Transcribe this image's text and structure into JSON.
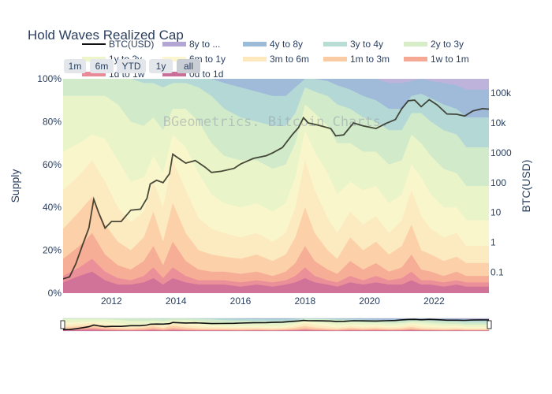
{
  "chart_data": {
    "type": "area",
    "title": "Hold Waves Realized Cap",
    "watermark": "BGeometrics. Bitcoin Charts.",
    "xlabel": "",
    "ylabel": "Supply",
    "y2label": "BTC(USD)",
    "x_ticks": [
      "2012",
      "2014",
      "2016",
      "2018",
      "2020",
      "2022"
    ],
    "y_ticks": [
      "0%",
      "20%",
      "40%",
      "60%",
      "80%",
      "100%"
    ],
    "y2_ticks": [
      "0.1",
      "1",
      "10",
      "100",
      "1000",
      "10k",
      "100k"
    ],
    "y2_scale": "log",
    "xlim": [
      2010.5,
      2023.7
    ],
    "ylim": [
      0,
      100
    ],
    "grid": false,
    "legend_position": "top",
    "legend": [
      {
        "name": "BTC(USD)",
        "color": "#111111",
        "kind": "line"
      },
      {
        "name": "8y to ...",
        "color": "#b3a6d4",
        "kind": "area"
      },
      {
        "name": "4y to 8y",
        "color": "#9bbbd8",
        "kind": "area"
      },
      {
        "name": "3y to 4y",
        "color": "#b7ddd4",
        "kind": "area"
      },
      {
        "name": "2y to 3y",
        "color": "#d6edc8",
        "kind": "area"
      },
      {
        "name": "1y to 2y",
        "color": "#eef6c9",
        "kind": "area"
      },
      {
        "name": "6m to 1y",
        "color": "#fbf6cd",
        "kind": "area"
      },
      {
        "name": "3m to 6m",
        "color": "#fde8bd",
        "kind": "area"
      },
      {
        "name": "1m to 3m",
        "color": "#fbcba3",
        "kind": "area"
      },
      {
        "name": "1w to 1m",
        "color": "#f5a894",
        "kind": "area"
      },
      {
        "name": "1d to 1w",
        "color": "#e98a98",
        "kind": "area"
      },
      {
        "name": "0d to 1d",
        "color": "#cc6f98",
        "kind": "area"
      }
    ],
    "range_buttons": [
      {
        "label": "1m",
        "active": false
      },
      {
        "label": "6m",
        "active": false
      },
      {
        "label": "YTD",
        "active": false
      },
      {
        "label": "1y",
        "active": false
      },
      {
        "label": "all",
        "active": true
      }
    ],
    "x": [
      2010.5,
      2011.0,
      2011.4,
      2011.8,
      2012.2,
      2012.6,
      2013.0,
      2013.3,
      2013.6,
      2013.9,
      2014.3,
      2014.7,
      2015.1,
      2015.5,
      2016.0,
      2016.5,
      2017.0,
      2017.4,
      2017.7,
      2018.0,
      2018.3,
      2018.7,
      2019.0,
      2019.4,
      2019.8,
      2020.2,
      2020.6,
      2021.0,
      2021.3,
      2021.6,
      2021.9,
      2022.3,
      2022.7,
      2023.0,
      2023.4,
      2023.7
    ],
    "series": [
      {
        "name": "0d to 1d",
        "values": [
          5,
          8,
          10,
          6,
          4,
          4,
          5,
          7,
          4,
          7,
          5,
          4,
          4,
          4,
          3,
          4,
          3,
          4,
          5,
          7,
          5,
          4,
          3,
          5,
          4,
          5,
          4,
          4,
          6,
          4,
          4,
          3,
          4,
          3,
          3,
          3
        ]
      },
      {
        "name": "1d to 1w",
        "values": [
          8,
          12,
          16,
          10,
          7,
          6,
          8,
          12,
          7,
          12,
          8,
          6,
          6,
          6,
          5,
          6,
          5,
          6,
          8,
          12,
          8,
          6,
          5,
          8,
          6,
          8,
          6,
          7,
          10,
          6,
          6,
          5,
          6,
          5,
          5,
          5
        ]
      },
      {
        "name": "1w to 1m",
        "values": [
          16,
          22,
          28,
          18,
          13,
          11,
          15,
          22,
          13,
          24,
          15,
          11,
          10,
          10,
          9,
          10,
          8,
          10,
          14,
          22,
          15,
          11,
          9,
          15,
          11,
          14,
          10,
          12,
          18,
          11,
          10,
          8,
          10,
          8,
          8,
          8
        ]
      },
      {
        "name": "1m to 3m",
        "values": [
          30,
          38,
          45,
          32,
          24,
          20,
          26,
          38,
          24,
          42,
          28,
          20,
          18,
          17,
          16,
          18,
          15,
          18,
          26,
          40,
          28,
          20,
          16,
          26,
          20,
          24,
          18,
          22,
          32,
          20,
          18,
          15,
          17,
          14,
          14,
          14
        ]
      },
      {
        "name": "3m to 6m",
        "values": [
          48,
          55,
          62,
          52,
          40,
          33,
          38,
          52,
          40,
          62,
          48,
          35,
          30,
          28,
          26,
          28,
          24,
          28,
          40,
          62,
          48,
          35,
          28,
          38,
          32,
          36,
          28,
          34,
          48,
          36,
          30,
          26,
          28,
          22,
          22,
          22
        ]
      },
      {
        "name": "6m to 1y",
        "values": [
          66,
          70,
          74,
          72,
          62,
          52,
          54,
          64,
          56,
          74,
          68,
          56,
          46,
          42,
          40,
          42,
          38,
          42,
          54,
          76,
          66,
          56,
          46,
          52,
          48,
          50,
          42,
          46,
          60,
          54,
          46,
          40,
          40,
          34,
          34,
          34
        ]
      },
      {
        "name": "1y to 2y",
        "values": [
          92,
          92,
          92,
          92,
          88,
          80,
          78,
          82,
          76,
          86,
          86,
          80,
          70,
          64,
          62,
          62,
          58,
          60,
          70,
          88,
          84,
          78,
          70,
          70,
          66,
          66,
          60,
          62,
          74,
          70,
          64,
          58,
          56,
          50,
          50,
          50
        ]
      },
      {
        "name": "2y to 3y",
        "values": [
          100,
          100,
          100,
          100,
          100,
          100,
          98,
          98,
          96,
          98,
          98,
          96,
          92,
          86,
          82,
          80,
          78,
          78,
          84,
          96,
          94,
          92,
          88,
          86,
          82,
          80,
          76,
          76,
          84,
          84,
          80,
          76,
          74,
          68,
          68,
          68
        ]
      },
      {
        "name": "3y to 4y",
        "values": [
          100,
          100,
          100,
          100,
          100,
          100,
          100,
          100,
          100,
          100,
          100,
          100,
          100,
          98,
          96,
          94,
          92,
          92,
          96,
          100,
          100,
          99,
          97,
          95,
          92,
          90,
          86,
          86,
          92,
          93,
          91,
          88,
          86,
          82,
          82,
          82
        ]
      },
      {
        "name": "4y to 8y",
        "values": [
          100,
          100,
          100,
          100,
          100,
          100,
          100,
          100,
          100,
          100,
          100,
          100,
          100,
          100,
          100,
          100,
          100,
          100,
          100,
          100,
          100,
          100,
          100,
          100,
          100,
          100,
          98,
          98,
          99,
          100,
          99,
          98,
          97,
          95,
          95,
          95
        ]
      },
      {
        "name": "8y to ...",
        "values": [
          100,
          100,
          100,
          100,
          100,
          100,
          100,
          100,
          100,
          100,
          100,
          100,
          100,
          100,
          100,
          100,
          100,
          100,
          100,
          100,
          100,
          100,
          100,
          100,
          100,
          100,
          100,
          100,
          100,
          100,
          100,
          100,
          100,
          100,
          100,
          100
        ]
      }
    ],
    "btc_price": {
      "name": "BTC(USD)",
      "x": [
        2010.5,
        2010.7,
        2010.9,
        2011.1,
        2011.3,
        2011.45,
        2011.6,
        2011.8,
        2012.0,
        2012.3,
        2012.6,
        2012.9,
        2013.1,
        2013.2,
        2013.4,
        2013.6,
        2013.8,
        2013.9,
        2014.0,
        2014.3,
        2014.6,
        2014.9,
        2015.1,
        2015.4,
        2015.8,
        2016.0,
        2016.4,
        2016.8,
        2017.0,
        2017.3,
        2017.6,
        2017.8,
        2017.95,
        2018.1,
        2018.4,
        2018.8,
        2018.95,
        2019.2,
        2019.5,
        2019.8,
        2020.0,
        2020.2,
        2020.5,
        2020.8,
        2021.0,
        2021.2,
        2021.4,
        2021.6,
        2021.85,
        2022.1,
        2022.4,
        2022.7,
        2022.95,
        2023.2,
        2023.5,
        2023.7
      ],
      "values": [
        0.06,
        0.07,
        0.2,
        0.8,
        3,
        28,
        10,
        3,
        5,
        5,
        12,
        13,
        30,
        90,
        120,
        100,
        200,
        900,
        750,
        450,
        550,
        330,
        220,
        240,
        300,
        420,
        650,
        800,
        1000,
        1500,
        4000,
        7000,
        15000,
        10000,
        8500,
        6500,
        3700,
        4000,
        10000,
        8000,
        7200,
        6500,
        9500,
        13000,
        30000,
        55000,
        58000,
        35000,
        60000,
        40000,
        20000,
        19500,
        17000,
        25000,
        30000,
        29000
      ]
    }
  }
}
